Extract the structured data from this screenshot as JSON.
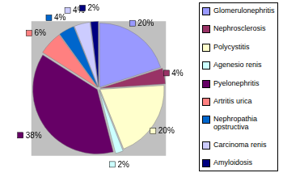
{
  "chart_data": {
    "type": "pie",
    "categories": [
      "Glomerulonephritis",
      "Nephrosclerosis",
      "Polycystitis",
      "Agenesio renis",
      "Pyelonephritis",
      "Artritis urica",
      "Nephropathia opstructiva",
      "Carcinoma renis",
      "Amyloidosis"
    ],
    "values": [
      20,
      4,
      20,
      2,
      38,
      6,
      4,
      4,
      2
    ],
    "value_labels": [
      "20%",
      "4%",
      "20%",
      "2%",
      "38%",
      "6%",
      "4%",
      "4%",
      "2%"
    ],
    "colors": [
      "#9999ff",
      "#993366",
      "#ffffcc",
      "#ccffff",
      "#660066",
      "#ff8080",
      "#0066cc",
      "#ccccff",
      "#000080"
    ],
    "data_labels": true,
    "legend": "right"
  }
}
